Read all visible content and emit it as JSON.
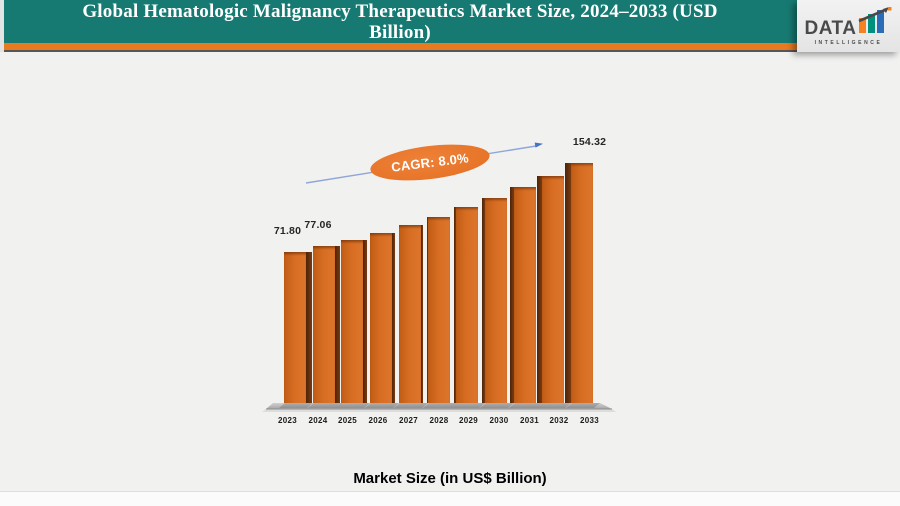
{
  "header": {
    "title_lines": [
      "Global Hematologic Malignancy Therapeutics Market Size, 2024–2033 (USD",
      "Billion)"
    ],
    "background_color": "#177a72",
    "accent_color": "#e87a20"
  },
  "logo": {
    "brand": "DATA",
    "subtext": "INTELLIGENCE",
    "bar_colors": [
      "#f58220",
      "#00917c",
      "#2b6cb8"
    ],
    "text_color": "#4a4a4c"
  },
  "annotation": {
    "cagr_label": "CAGR: 8.0%",
    "ellipse_color": "#e8772c",
    "arrow_color": "#8fa6d9"
  },
  "footer": {
    "axis_caption": "Market Size (in US$ Billion)"
  },
  "chart_data": {
    "type": "bar",
    "title": "Global Hematologic Malignancy Therapeutics Market Size, 2024–2033 (USD Billion)",
    "categories": [
      "2023",
      "2024",
      "2025",
      "2026",
      "2027",
      "2028",
      "2029",
      "2030",
      "2031",
      "2032",
      "2033"
    ],
    "values": [
      71.8,
      77.06,
      83.22,
      89.88,
      97.07,
      104.84,
      113.23,
      122.28,
      132.07,
      142.63,
      154.32
    ],
    "visible_data_labels": [
      "71.80",
      "77.06",
      "",
      "",
      "",
      "",
      "",
      "",
      "",
      "",
      "154.32"
    ],
    "cagr": "8.0%",
    "xlabel": "Market Size (in US$ Billion)",
    "ylabel": "",
    "legend": "none",
    "grid": "off",
    "bar_color": "#d2691e",
    "style": "3d-column"
  }
}
